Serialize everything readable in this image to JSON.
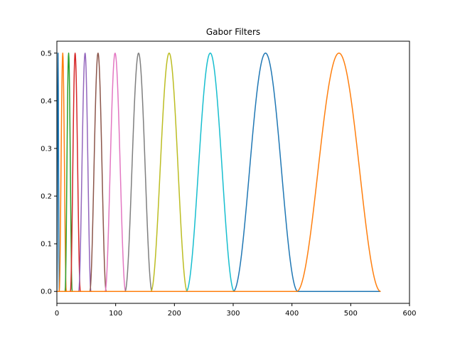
{
  "chart_data": {
    "type": "line",
    "title": "Gabor Filters",
    "xlabel": "",
    "ylabel": "",
    "xlim": [
      0,
      600
    ],
    "ylim": [
      -0.025,
      0.525
    ],
    "xticks": [
      0,
      100,
      200,
      300,
      400,
      500,
      600
    ],
    "yticks": [
      0.0,
      0.1,
      0.2,
      0.3,
      0.4,
      0.5
    ],
    "x_range": [
      0,
      551
    ],
    "grid": false,
    "legend": "none",
    "series": [
      {
        "color": "#1f77b4",
        "peak_x": 2,
        "peak_y": 0.5,
        "support": [
          0,
          4
        ]
      },
      {
        "color": "#ff7f0e",
        "peak_x": 10,
        "peak_y": 0.5,
        "support": [
          4,
          16
        ]
      },
      {
        "color": "#2ca02c",
        "peak_x": 20,
        "peak_y": 0.5,
        "support": [
          14,
          26
        ]
      },
      {
        "color": "#d62728",
        "peak_x": 31,
        "peak_y": 0.5,
        "support": [
          23,
          40
        ]
      },
      {
        "color": "#9467bd",
        "peak_x": 48,
        "peak_y": 0.5,
        "support": [
          37,
          58
        ]
      },
      {
        "color": "#8c564b",
        "peak_x": 70,
        "peak_y": 0.5,
        "support": [
          56,
          84
        ]
      },
      {
        "color": "#e377c2",
        "peak_x": 99,
        "peak_y": 0.5,
        "support": [
          82,
          117
        ]
      },
      {
        "color": "#7f7f7f",
        "peak_x": 139,
        "peak_y": 0.5,
        "support": [
          116,
          162
        ]
      },
      {
        "color": "#bcbd22",
        "peak_x": 191,
        "peak_y": 0.5,
        "support": [
          160,
          222
        ]
      },
      {
        "color": "#17becf",
        "peak_x": 261,
        "peak_y": 0.5,
        "support": [
          220,
          302
        ]
      },
      {
        "color": "#1f77b4",
        "peak_x": 355,
        "peak_y": 0.5,
        "support": [
          300,
          410
        ]
      },
      {
        "color": "#ff7f0e",
        "peak_x": 480,
        "peak_y": 0.5,
        "support": [
          408,
          551
        ]
      }
    ]
  }
}
